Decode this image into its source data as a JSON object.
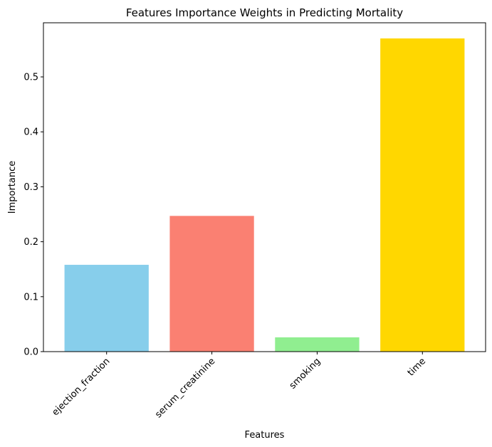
{
  "chart_data": {
    "type": "bar",
    "title": "Features Importance Weights in Predicting Mortality",
    "xlabel": "Features",
    "ylabel": "Importance",
    "categories": [
      "ejection_fraction",
      "serum_creatinine",
      "smoking",
      "time"
    ],
    "values": [
      0.158,
      0.247,
      0.026,
      0.57
    ],
    "colors": [
      "#87ceeb",
      "#fa8072",
      "#90ee90",
      "#ffd700"
    ],
    "ylim": [
      0,
      0.5985
    ],
    "yticks": [
      "0.0",
      "0.1",
      "0.2",
      "0.3",
      "0.4",
      "0.5"
    ],
    "grid": false,
    "legend": "none"
  }
}
